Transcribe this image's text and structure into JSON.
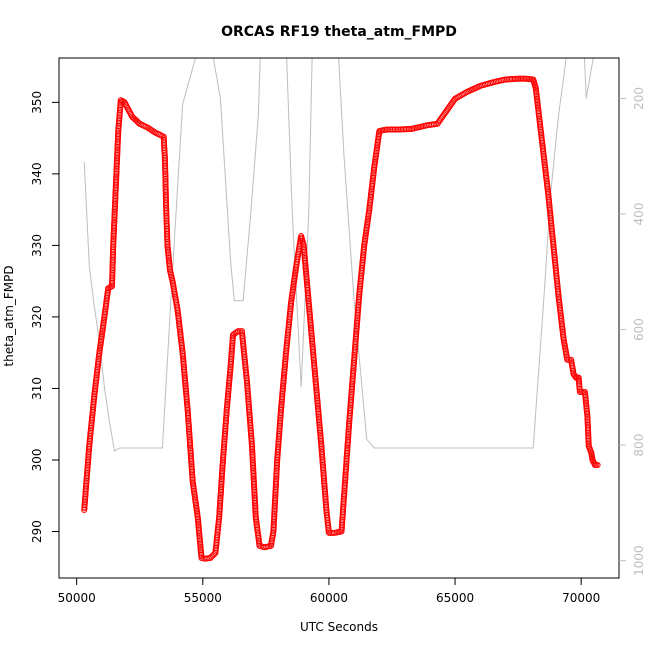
{
  "chart_data": {
    "type": "scatter",
    "title": "ORCAS RF19 theta_atm_FMPD",
    "xlabel": "UTC Seconds",
    "ylabel": "theta_atm_FMPD",
    "xlim": [
      49300,
      71500
    ],
    "ylim": [
      283.5,
      356.2
    ],
    "x_ticks": [
      "50000",
      "55000",
      "60000",
      "65000",
      "70000"
    ],
    "y_ticks": [
      "290",
      "300",
      "310",
      "320",
      "330",
      "340",
      "350"
    ],
    "y2_ticks": [
      "200",
      "400",
      "600",
      "800",
      "1000"
    ],
    "y2lim_inverted": [
      1030,
      130
    ],
    "series": [
      {
        "color": "#ff0000",
        "marker": "open-circle",
        "axis": "left",
        "points": [
          [
            50300,
            293
          ],
          [
            50500,
            302
          ],
          [
            50700,
            309
          ],
          [
            50900,
            315
          ],
          [
            51100,
            320
          ],
          [
            51250,
            324
          ],
          [
            51400,
            324.3
          ],
          [
            51450,
            330
          ],
          [
            51550,
            338
          ],
          [
            51650,
            346
          ],
          [
            51750,
            350.3
          ],
          [
            51900,
            350
          ],
          [
            52200,
            348
          ],
          [
            52500,
            347
          ],
          [
            52800,
            346.5
          ],
          [
            53100,
            345.8
          ],
          [
            53450,
            345.2
          ],
          [
            53500,
            342
          ],
          [
            53550,
            335
          ],
          [
            53600,
            330
          ],
          [
            53700,
            326.5
          ],
          [
            53800,
            325
          ],
          [
            54000,
            321
          ],
          [
            54200,
            315
          ],
          [
            54400,
            307
          ],
          [
            54600,
            297
          ],
          [
            54800,
            292
          ],
          [
            54950,
            286.3
          ],
          [
            55100,
            286.2
          ],
          [
            55300,
            286.3
          ],
          [
            55500,
            287
          ],
          [
            55650,
            292
          ],
          [
            55800,
            300
          ],
          [
            55950,
            307
          ],
          [
            56100,
            313
          ],
          [
            56200,
            317.5
          ],
          [
            56400,
            318
          ],
          [
            56550,
            318
          ],
          [
            56750,
            311
          ],
          [
            56950,
            302
          ],
          [
            57100,
            292
          ],
          [
            57250,
            288
          ],
          [
            57450,
            287.8
          ],
          [
            57700,
            288
          ],
          [
            57800,
            290
          ],
          [
            57950,
            300
          ],
          [
            58100,
            307
          ],
          [
            58300,
            315
          ],
          [
            58500,
            322
          ],
          [
            58700,
            327
          ],
          [
            58900,
            331.3
          ],
          [
            59000,
            330
          ],
          [
            59200,
            322
          ],
          [
            59450,
            312
          ],
          [
            59700,
            302
          ],
          [
            59900,
            293
          ],
          [
            60000,
            289.8
          ],
          [
            60200,
            289.8
          ],
          [
            60500,
            290
          ],
          [
            60600,
            295
          ],
          [
            60800,
            305
          ],
          [
            61000,
            314
          ],
          [
            61200,
            323
          ],
          [
            61400,
            330
          ],
          [
            61600,
            335
          ],
          [
            61800,
            341
          ],
          [
            62000,
            346
          ],
          [
            62300,
            346.2
          ],
          [
            62800,
            346.2
          ],
          [
            63300,
            346.3
          ],
          [
            63900,
            346.8
          ],
          [
            64300,
            347
          ],
          [
            64600,
            348.5
          ],
          [
            65000,
            350.5
          ],
          [
            65500,
            351.5
          ],
          [
            66000,
            352.3
          ],
          [
            66500,
            352.8
          ],
          [
            67000,
            353.2
          ],
          [
            67500,
            353.3
          ],
          [
            67800,
            353.3
          ],
          [
            68100,
            353.2
          ],
          [
            68200,
            352
          ],
          [
            68300,
            349
          ],
          [
            68500,
            343
          ],
          [
            68700,
            337
          ],
          [
            68900,
            330
          ],
          [
            69100,
            323
          ],
          [
            69300,
            317
          ],
          [
            69450,
            314
          ],
          [
            69600,
            314
          ],
          [
            69700,
            312
          ],
          [
            69800,
            311.5
          ],
          [
            69900,
            311.5
          ],
          [
            69950,
            309.5
          ],
          [
            70150,
            309.5
          ],
          [
            70250,
            306
          ],
          [
            70300,
            302
          ],
          [
            70400,
            301
          ],
          [
            70450,
            300
          ],
          [
            70550,
            299.3
          ],
          [
            70650,
            299.3
          ]
        ]
      },
      {
        "color": "#bebebe",
        "marker": "line",
        "axis": "right",
        "points": [
          [
            50300,
            310
          ],
          [
            50500,
            490
          ],
          [
            50700,
            560
          ],
          [
            50900,
            620
          ],
          [
            51100,
            700
          ],
          [
            51300,
            760
          ],
          [
            51500,
            810
          ],
          [
            51700,
            805
          ],
          [
            53400,
            805
          ],
          [
            53800,
            500
          ],
          [
            54200,
            210
          ],
          [
            54900,
            100
          ],
          [
            55300,
            100
          ],
          [
            55700,
            200
          ],
          [
            56100,
            480
          ],
          [
            56250,
            550
          ],
          [
            56600,
            550
          ],
          [
            56900,
            400
          ],
          [
            57200,
            230
          ],
          [
            57300,
            100
          ],
          [
            58300,
            100
          ],
          [
            58550,
            400
          ],
          [
            58900,
            700
          ],
          [
            59200,
            400
          ],
          [
            59350,
            100
          ],
          [
            60350,
            100
          ],
          [
            60600,
            300
          ],
          [
            61000,
            550
          ],
          [
            61500,
            790
          ],
          [
            61800,
            805
          ],
          [
            68100,
            805
          ],
          [
            68500,
            560
          ],
          [
            68800,
            360
          ],
          [
            69100,
            230
          ],
          [
            69500,
            100
          ],
          [
            70100,
            100
          ],
          [
            70200,
            200
          ],
          [
            70600,
            100
          ]
        ]
      }
    ]
  }
}
